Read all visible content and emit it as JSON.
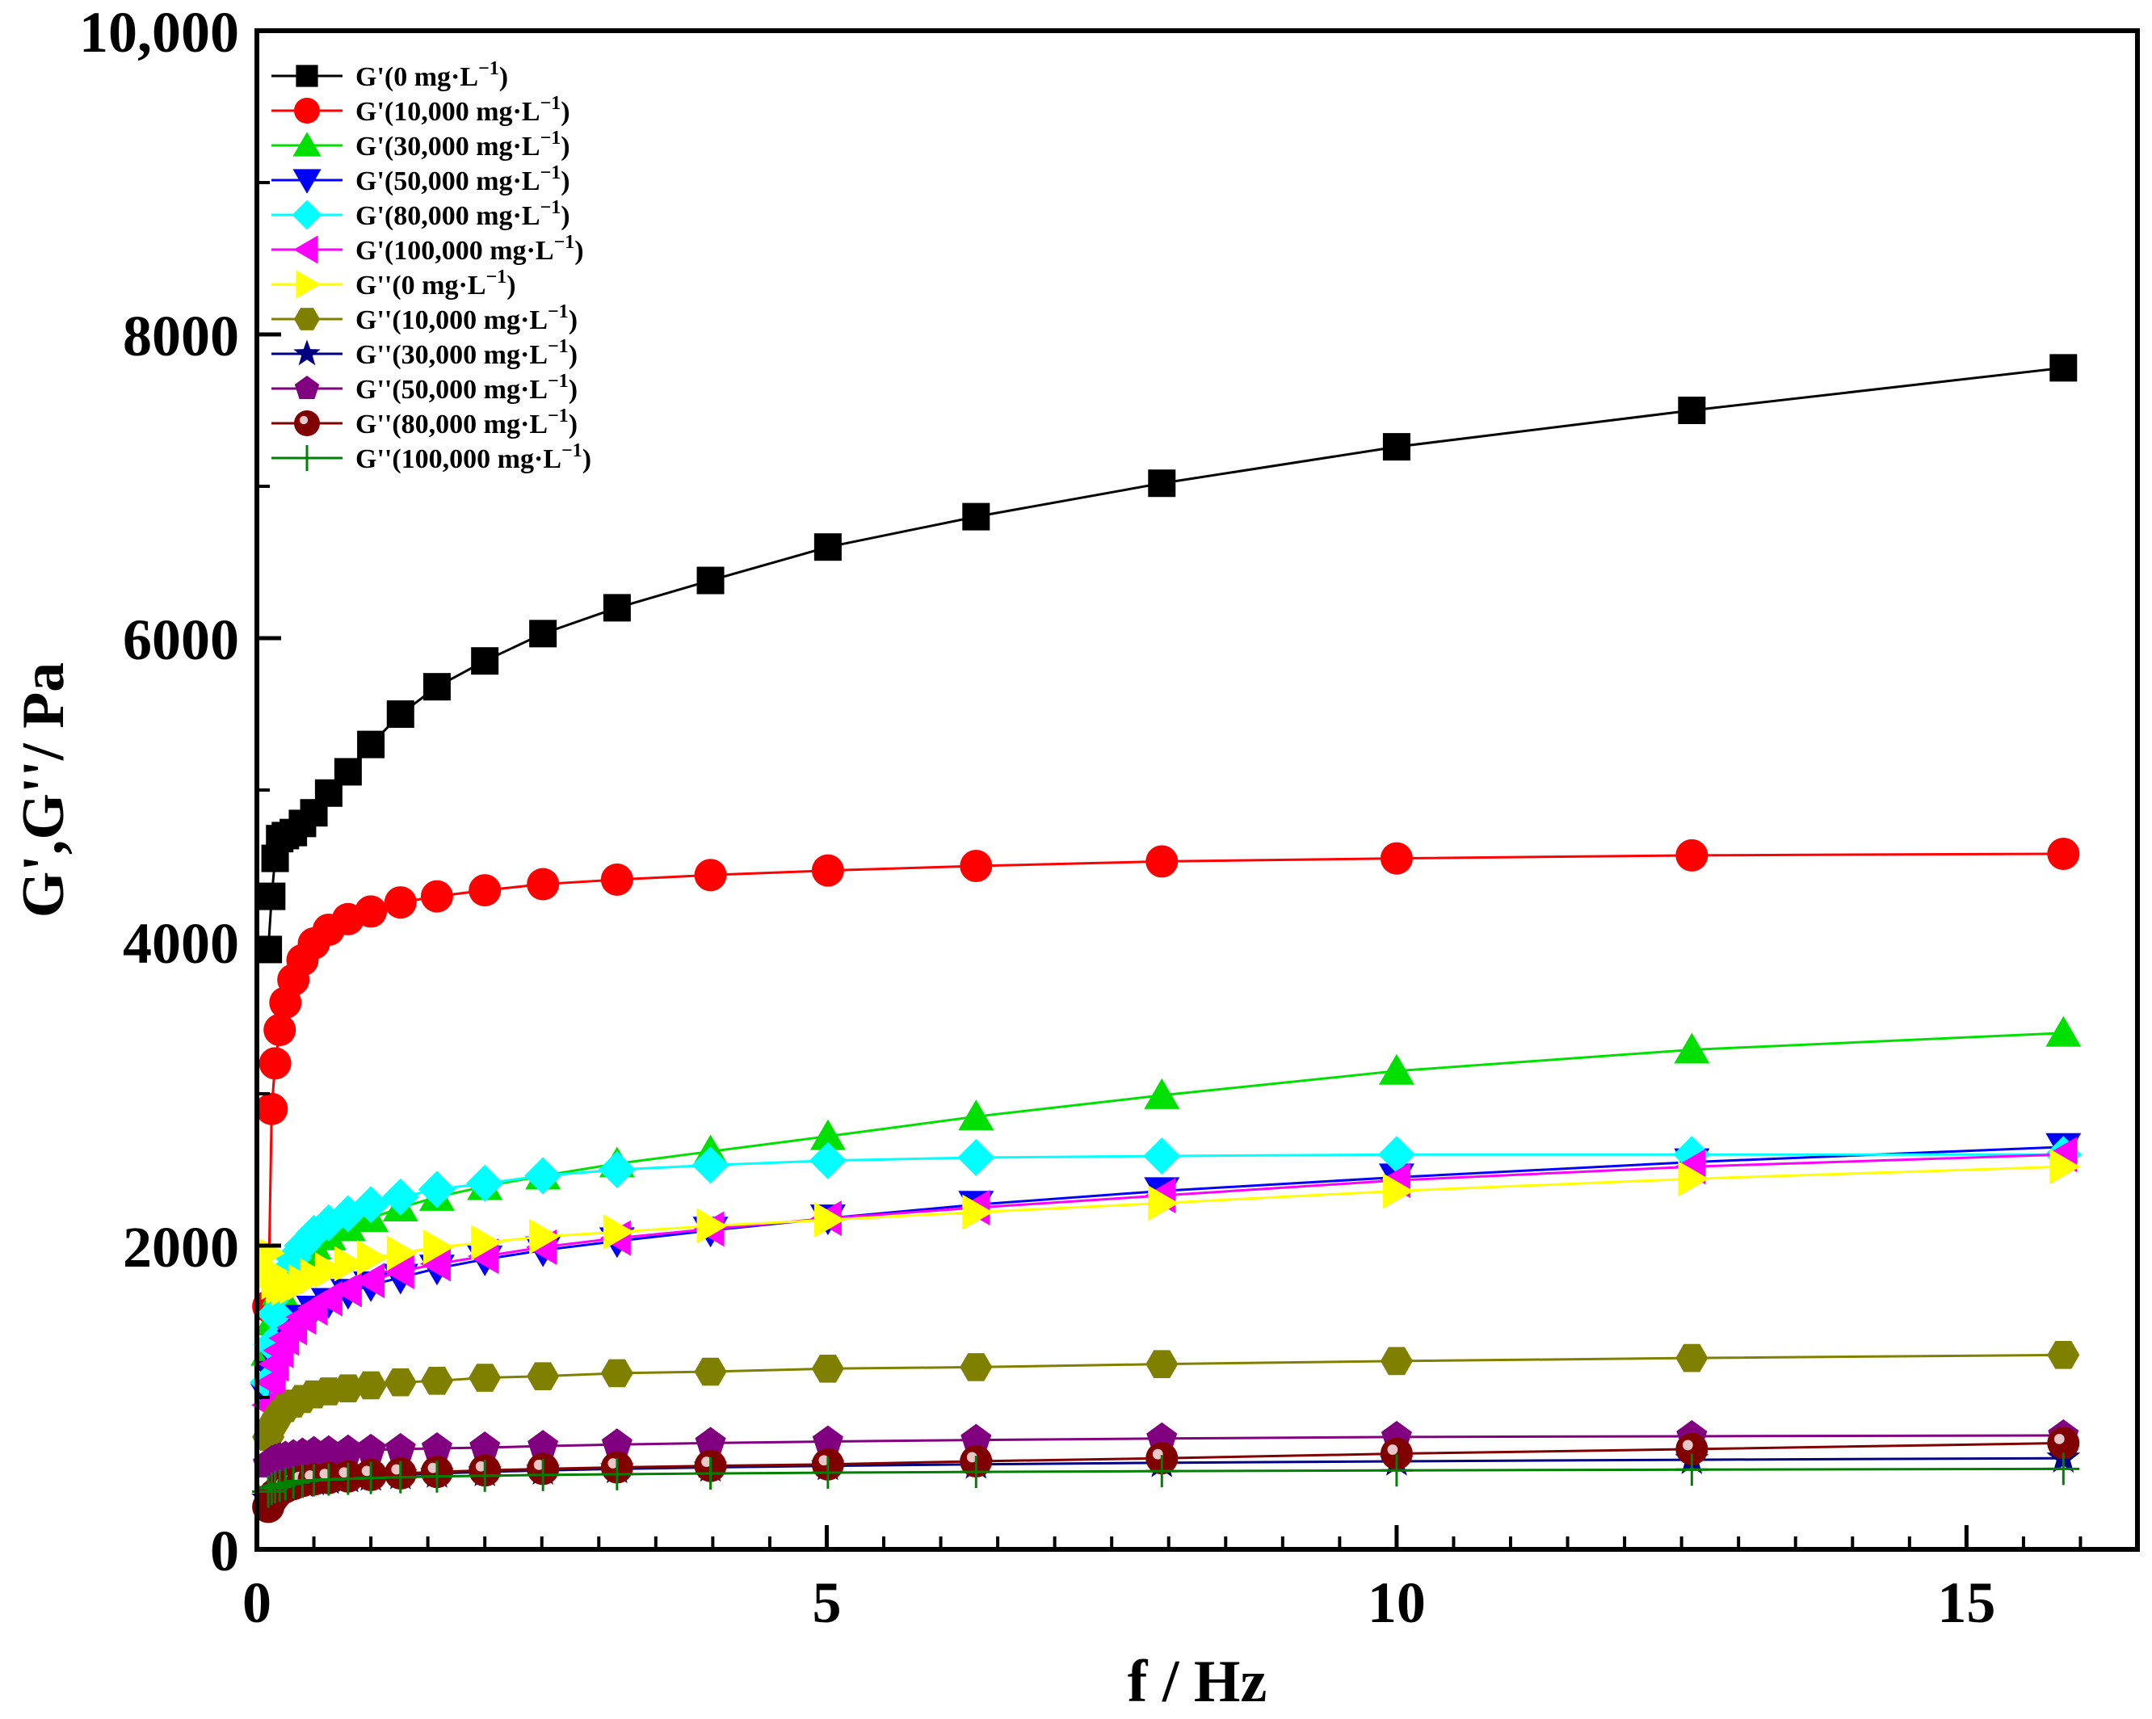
{
  "chart_data": {
    "type": "line",
    "title": "",
    "xlabel": "f / Hz",
    "ylabel": "G',G''/ Pa",
    "xlim": [
      0,
      16.5
    ],
    "ylim": [
      0,
      10000
    ],
    "x_ticks": [
      0,
      5,
      10,
      15
    ],
    "x_tick_labels": [
      "0",
      "5",
      "10",
      "15"
    ],
    "y_ticks": [
      0,
      2000,
      4000,
      6000,
      8000,
      10000
    ],
    "y_tick_labels": [
      "0",
      "2000",
      "4000",
      "6000",
      "8000",
      "10,000"
    ],
    "legend_position": "top-left",
    "x": [
      0.1,
      0.13,
      0.16,
      0.2,
      0.25,
      0.32,
      0.4,
      0.5,
      0.63,
      0.8,
      1.0,
      1.26,
      1.58,
      2.0,
      2.51,
      3.16,
      3.98,
      5.01,
      6.31,
      7.94,
      10.0,
      12.59,
      15.85
    ],
    "series": [
      {
        "name": "G'(0 mg·L",
        "sup": "−1",
        "color": "#000000",
        "marker": "square",
        "values": [
          3950,
          4300,
          4550,
          4680,
          4700,
          4720,
          4780,
          4850,
          4980,
          5120,
          5300,
          5500,
          5680,
          5850,
          6030,
          6200,
          6380,
          6600,
          6800,
          7020,
          7260,
          7500,
          7780
        ]
      },
      {
        "name": "G'(10,000 mg·L",
        "sup": "−1",
        "color": "#ff0000",
        "marker": "circle",
        "values": [
          1600,
          2900,
          3200,
          3420,
          3600,
          3750,
          3880,
          3990,
          4080,
          4150,
          4200,
          4260,
          4300,
          4340,
          4380,
          4410,
          4440,
          4470,
          4500,
          4530,
          4550,
          4570,
          4580
        ]
      },
      {
        "name": "G'(30,000 mg·L",
        "sup": "−1",
        "color": "#00e000",
        "marker": "triangle-up",
        "values": [
          1300,
          1500,
          1620,
          1700,
          1780,
          1860,
          1930,
          2000,
          2060,
          2120,
          2180,
          2250,
          2320,
          2390,
          2460,
          2540,
          2620,
          2720,
          2850,
          2990,
          3150,
          3290,
          3400
        ]
      },
      {
        "name": "G'(50,000 mg·L",
        "sup": "−1",
        "color": "#0000ff",
        "marker": "triangle-down",
        "values": [
          1000,
          1150,
          1250,
          1330,
          1400,
          1460,
          1520,
          1580,
          1630,
          1690,
          1740,
          1790,
          1850,
          1910,
          1970,
          2030,
          2100,
          2180,
          2270,
          2360,
          2450,
          2550,
          2650
        ]
      },
      {
        "name": "G'(80,000 mg·L",
        "sup": "−1",
        "color": "#00ffff",
        "marker": "diamond",
        "values": [
          1100,
          1350,
          1550,
          1700,
          1820,
          1920,
          2000,
          2080,
          2150,
          2210,
          2270,
          2320,
          2370,
          2410,
          2460,
          2500,
          2530,
          2560,
          2580,
          2590,
          2600,
          2600,
          2600
        ]
      },
      {
        "name": "G'(100,000 mg·L",
        "sup": "−1",
        "color": "#ff00ff",
        "marker": "triangle-left",
        "values": [
          950,
          1100,
          1220,
          1310,
          1390,
          1460,
          1530,
          1590,
          1650,
          1710,
          1770,
          1830,
          1880,
          1930,
          1990,
          2050,
          2110,
          2180,
          2250,
          2330,
          2430,
          2520,
          2600
        ]
      },
      {
        "name": "G''(0 mg·L",
        "sup": "−1",
        "color": "#ffff00",
        "marker": "triangle-right",
        "values": [
          1950,
          1830,
          1760,
          1730,
          1720,
          1730,
          1760,
          1800,
          1840,
          1880,
          1920,
          1950,
          1990,
          2020,
          2060,
          2090,
          2130,
          2170,
          2220,
          2280,
          2360,
          2440,
          2520
        ]
      },
      {
        "name": "G''(10,000 mg·L",
        "sup": "−1",
        "color": "#808000",
        "marker": "hexagon",
        "values": [
          740,
          800,
          850,
          890,
          930,
          960,
          990,
          1020,
          1040,
          1060,
          1080,
          1100,
          1110,
          1130,
          1140,
          1160,
          1170,
          1190,
          1200,
          1220,
          1240,
          1260,
          1280
        ]
      },
      {
        "name": "G''(30,000 mg·L",
        "sup": "−1",
        "color": "#000080",
        "marker": "star",
        "values": [
          330,
          360,
          380,
          400,
          420,
          430,
          440,
          450,
          460,
          470,
          480,
          490,
          500,
          510,
          520,
          530,
          540,
          550,
          560,
          570,
          580,
          590,
          600
        ]
      },
      {
        "name": "G''(50,000 mg·L",
        "sup": "−1",
        "color": "#800080",
        "marker": "pentagon",
        "values": [
          560,
          580,
          590,
          600,
          610,
          620,
          630,
          640,
          645,
          650,
          655,
          660,
          665,
          670,
          680,
          690,
          700,
          710,
          720,
          730,
          740,
          745,
          750
        ]
      },
      {
        "name": "G''(80,000 mg·L",
        "sup": "−1",
        "color": "#800000",
        "marker": "sphere",
        "values": [
          280,
          330,
          360,
          390,
          410,
          430,
          450,
          460,
          470,
          480,
          490,
          500,
          510,
          520,
          530,
          540,
          550,
          560,
          580,
          600,
          630,
          660,
          700
        ]
      },
      {
        "name": "G''(100,000 mg·L",
        "sup": "−1",
        "color": "#008000",
        "marker": "plus",
        "values": [
          380,
          400,
          410,
          420,
          430,
          440,
          450,
          455,
          460,
          465,
          470,
          475,
          480,
          485,
          490,
          495,
          500,
          505,
          510,
          515,
          520,
          525,
          530
        ]
      }
    ]
  }
}
